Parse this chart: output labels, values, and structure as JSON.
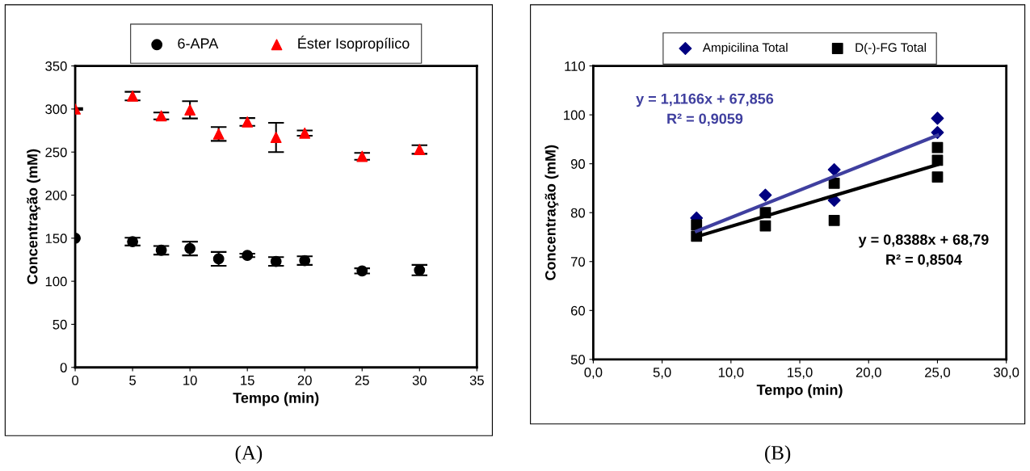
{
  "chart_data": [
    {
      "type": "scatter",
      "xlabel": "Tempo (min)",
      "ylabel": "Concentração (mM)",
      "xlim": [
        0,
        35
      ],
      "xticks": [
        0,
        5,
        10,
        15,
        20,
        25,
        30,
        35
      ],
      "ylim": [
        0,
        350
      ],
      "yticks": [
        0,
        50,
        100,
        150,
        200,
        250,
        300,
        350
      ],
      "grid": false,
      "legend": "top",
      "annotations": [
        "(A)"
      ],
      "series": [
        {
          "name": "6-APA",
          "color": "#000000",
          "marker": "circle",
          "x": [
            0,
            5,
            7.5,
            10,
            12.5,
            15,
            17.5,
            20,
            25,
            30
          ],
          "values": [
            150,
            146,
            136,
            138,
            126,
            130,
            123,
            124,
            112,
            113
          ],
          "errors": [
            null,
            4.5,
            5,
            8,
            8,
            2,
            5,
            5,
            3,
            6
          ]
        },
        {
          "name": "Éster Isopropílico",
          "color": "#ff0000",
          "marker": "triangle",
          "x": [
            0,
            5,
            7.5,
            10,
            12.5,
            15,
            17.5,
            20,
            25,
            30
          ],
          "values": [
            300,
            315,
            292,
            299,
            271,
            285,
            267,
            272,
            245,
            253
          ],
          "errors": [
            1,
            5,
            4,
            10,
            8,
            4.5,
            17,
            3,
            4,
            5
          ]
        }
      ]
    },
    {
      "type": "scatter",
      "xlabel": "Tempo (min)",
      "ylabel": "Concentração (mM)",
      "xlim": [
        0,
        30
      ],
      "xticks": [
        {
          "value": 0,
          "label": "0,0"
        },
        {
          "value": 5,
          "label": "5,0"
        },
        {
          "value": 10,
          "label": "10,0"
        },
        {
          "value": 15,
          "label": "15,0"
        },
        {
          "value": 20,
          "label": "20,0"
        },
        {
          "value": 25,
          "label": "25,0"
        },
        {
          "value": 30,
          "label": "30,0"
        }
      ],
      "ylim": [
        50,
        110
      ],
      "yticks": [
        50,
        60,
        70,
        80,
        90,
        100,
        110
      ],
      "grid": false,
      "legend": "top",
      "annotations": [
        "y = 1,1166x + 67,856\nR² = 0,9059",
        "y = 0,8388x + 68,79\nR² = 0,8504",
        "(B)"
      ],
      "series": [
        {
          "name": "Ampicilina Total",
          "color": "#000080",
          "marker": "diamond",
          "x": [
            7.5,
            12.5,
            17.5,
            17.5,
            25,
            25
          ],
          "values": [
            78.9,
            83.6,
            88.8,
            82.5,
            99.3,
            96.4
          ]
        },
        {
          "name": "D(-)-FG Total",
          "color": "#000000",
          "marker": "square",
          "x": [
            7.5,
            7.5,
            12.5,
            12.5,
            17.5,
            17.5,
            25,
            25,
            25
          ],
          "values": [
            77.5,
            75.2,
            80.0,
            77.3,
            86.0,
            78.4,
            93.3,
            90.7,
            87.3
          ]
        },
        {
          "type": "line",
          "color": "#3f3f9f",
          "x": [
            7.5,
            25
          ],
          "values": [
            76.2,
            95.8
          ]
        },
        {
          "type": "line",
          "color": "#000000",
          "x": [
            7.5,
            25
          ],
          "values": [
            75.1,
            89.8
          ]
        }
      ]
    }
  ]
}
